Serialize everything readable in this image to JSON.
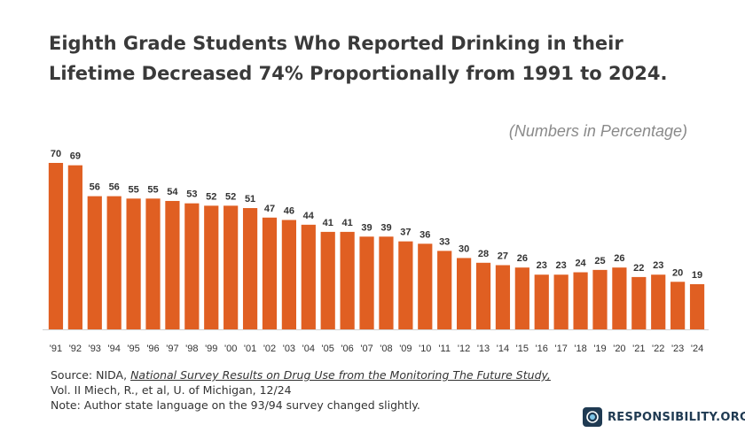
{
  "title": {
    "line1": "Eighth Grade Students Who Reported Drinking in their",
    "line2": "Lifetime Decreased 74% Proportionally from 1991 to 2024."
  },
  "unit_note": "(Numbers in Percentage)",
  "source": {
    "prefix": "Source: NIDA, ",
    "reference": "National Survey Results on Drug Use from the Monitoring The Future Study,",
    "line2": "Vol. II Miech, R., et al, U. of Michigan, 12/24",
    "line3": "Note: Author state language on the 93/94 survey changed slightly."
  },
  "logo": {
    "text": "RESPONSIBILITY.ORG"
  },
  "colors": {
    "bar": "#e05f22",
    "label": "#333333",
    "axis": "#d0d0d0"
  },
  "chart_data": {
    "type": "bar",
    "title": "Eighth Grade Students Who Reported Drinking in their Lifetime Decreased 74% Proportionally from 1991 to 2024.",
    "xlabel": "",
    "ylabel": "(Numbers in Percentage)",
    "ylim": [
      0,
      70
    ],
    "categories": [
      "'91",
      "'92",
      "'93",
      "'94",
      "'95",
      "'96",
      "'97",
      "'98",
      "'99",
      "'00",
      "'01",
      "'02",
      "'03",
      "'04",
      "'05",
      "'06",
      "'07",
      "'08",
      "'09",
      "'10",
      "'11",
      "'12",
      "'13",
      "'14",
      "'15",
      "'16",
      "'17",
      "'18",
      "'19",
      "'20",
      "'21",
      "'22",
      "'23",
      "'24"
    ],
    "values": [
      70,
      69,
      56,
      56,
      55,
      55,
      54,
      53,
      52,
      52,
      51,
      47,
      46,
      44,
      41,
      41,
      39,
      39,
      37,
      36,
      33,
      30,
      28,
      27,
      26,
      23,
      23,
      24,
      25,
      26,
      22,
      23,
      20,
      19
    ],
    "grid": false,
    "data_labels": true
  }
}
